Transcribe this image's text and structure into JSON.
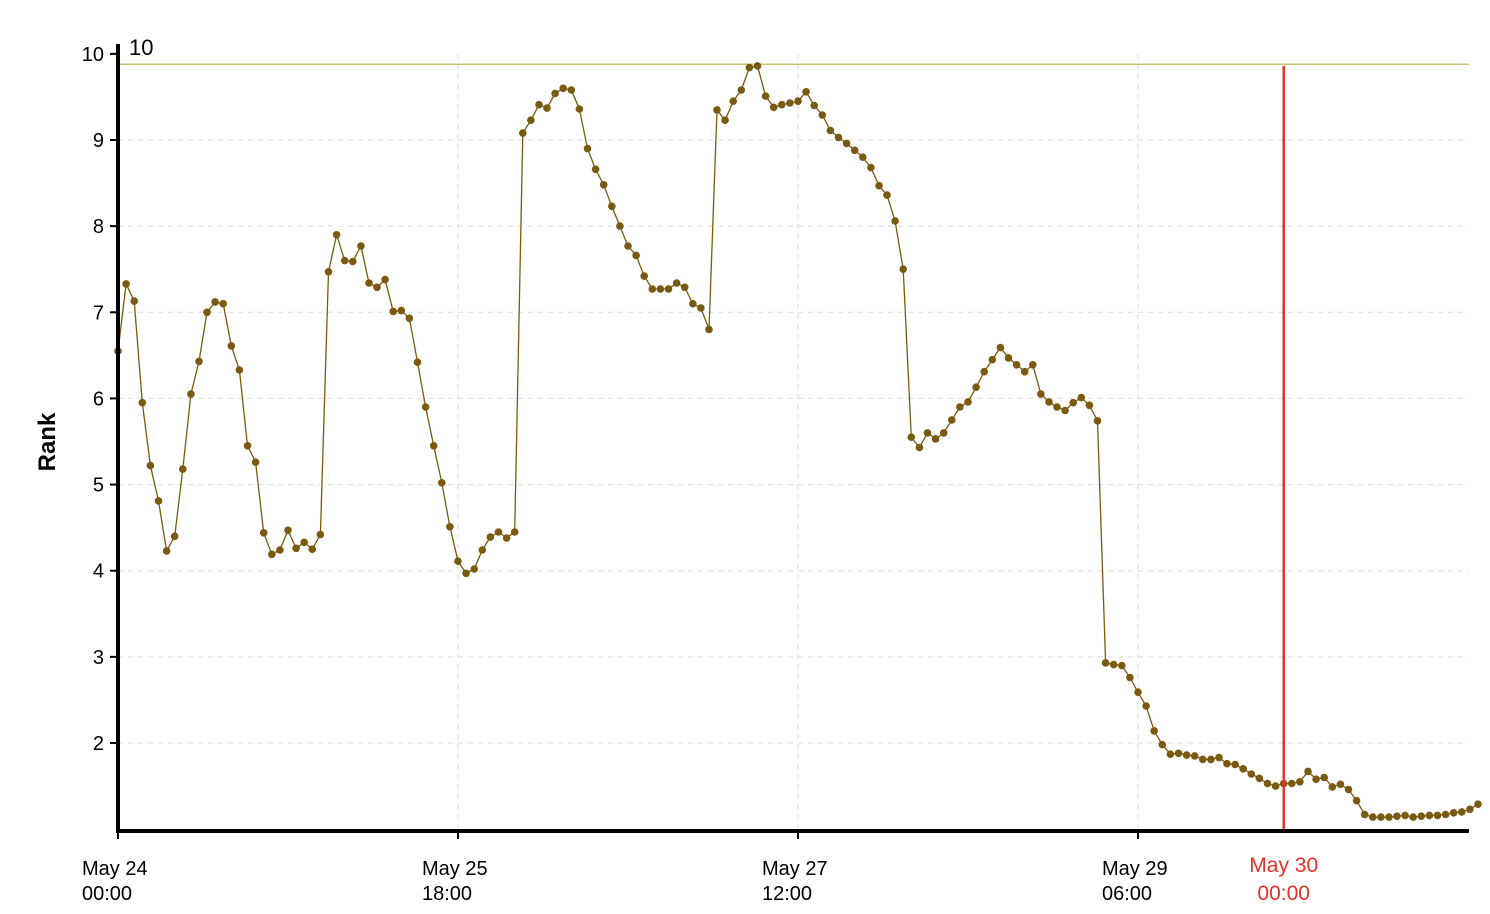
{
  "chart_data": {
    "type": "line",
    "ylabel": "Rank",
    "ylim": [
      1.0,
      10.0
    ],
    "y_ticks": [
      2,
      3,
      4,
      5,
      6,
      7,
      8,
      9,
      10
    ],
    "x_ticks": [
      {
        "date": "May 24",
        "time": "00:00",
        "hour": 0
      },
      {
        "date": "May 25",
        "time": "18:00",
        "hour": 42
      },
      {
        "date": "May 27",
        "time": "12:00",
        "hour": 84
      },
      {
        "date": "May 29",
        "time": "06:00",
        "hour": 126
      }
    ],
    "grid": true,
    "reference_line": {
      "value": 9.88,
      "label": "10",
      "color": "#b5b040"
    },
    "marker": {
      "date": "May 30",
      "time": "00:00",
      "hour": 144,
      "color": "#e8302a"
    },
    "series": [
      {
        "color": "#7a5a10",
        "interval_hours": 1,
        "values": [
          6.55,
          7.33,
          7.13,
          5.95,
          5.22,
          4.81,
          4.23,
          4.4,
          5.18,
          6.05,
          6.43,
          7.0,
          7.12,
          7.1,
          6.61,
          6.33,
          5.45,
          5.26,
          4.44,
          4.19,
          4.24,
          4.47,
          4.26,
          4.33,
          4.25,
          4.42,
          7.47,
          7.9,
          7.6,
          7.59,
          7.77,
          7.34,
          7.29,
          7.38,
          7.01,
          7.02,
          6.93,
          6.42,
          5.9,
          5.45,
          5.02,
          4.51,
          4.11,
          3.97,
          4.02,
          4.24,
          4.39,
          4.45,
          4.38,
          4.45,
          9.08,
          9.23,
          9.41,
          9.37,
          9.54,
          9.6,
          9.58,
          9.36,
          8.9,
          8.66,
          8.48,
          8.23,
          8.0,
          7.77,
          7.66,
          7.42,
          7.27,
          7.27,
          7.27,
          7.34,
          7.29,
          7.1,
          7.05,
          6.8,
          9.35,
          9.23,
          9.45,
          9.58,
          9.84,
          9.86,
          9.51,
          9.38,
          9.41,
          9.43,
          9.45,
          9.56,
          9.4,
          9.29,
          9.11,
          9.03,
          8.96,
          8.88,
          8.8,
          8.68,
          8.47,
          8.36,
          8.06,
          7.5,
          5.55,
          5.43,
          5.6,
          5.53,
          5.6,
          5.75,
          5.9,
          5.96,
          6.13,
          6.31,
          6.45,
          6.59,
          6.47,
          6.39,
          6.31,
          6.39,
          6.05,
          5.96,
          5.9,
          5.86,
          5.95,
          6.01,
          5.92,
          5.74,
          2.93,
          2.91,
          2.9,
          2.76,
          2.59,
          2.43,
          2.14,
          1.98,
          1.87,
          1.88,
          1.86,
          1.85,
          1.81,
          1.81,
          1.83,
          1.76,
          1.75,
          1.7,
          1.64,
          1.59,
          1.53,
          1.5,
          1.53,
          1.53,
          1.55,
          1.67,
          1.58,
          1.6,
          1.49,
          1.52,
          1.46,
          1.33,
          1.17,
          1.14,
          1.14,
          1.14,
          1.15,
          1.16,
          1.14,
          1.15,
          1.16,
          1.16,
          1.17,
          1.19,
          1.2,
          1.23,
          1.29
        ]
      }
    ]
  }
}
